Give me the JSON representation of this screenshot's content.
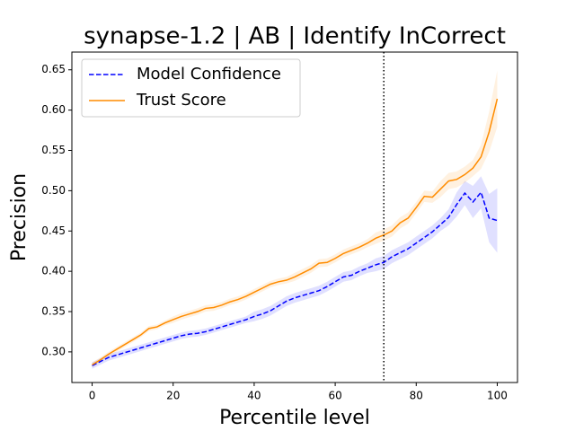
{
  "chart_data": {
    "type": "line",
    "title": "synapse-1.2 | AB | Identify InCorrect",
    "xlabel": "Percentile level",
    "ylabel": "Precision",
    "x": [
      0,
      2,
      4,
      6,
      8,
      10,
      12,
      14,
      16,
      18,
      20,
      22,
      24,
      26,
      28,
      30,
      32,
      34,
      36,
      38,
      40,
      42,
      44,
      46,
      48,
      50,
      52,
      54,
      56,
      58,
      60,
      62,
      64,
      66,
      68,
      70,
      72,
      74,
      76,
      78,
      80,
      82,
      84,
      86,
      88,
      90,
      92,
      94,
      96,
      98,
      100
    ],
    "series": [
      {
        "name": "Model Confidence",
        "color": "#0000ff",
        "dash": true,
        "values": [
          0.283,
          0.288,
          0.293,
          0.296,
          0.299,
          0.302,
          0.305,
          0.308,
          0.311,
          0.314,
          0.317,
          0.32,
          0.322,
          0.323,
          0.325,
          0.328,
          0.331,
          0.334,
          0.337,
          0.34,
          0.344,
          0.347,
          0.351,
          0.357,
          0.363,
          0.367,
          0.37,
          0.373,
          0.376,
          0.381,
          0.387,
          0.393,
          0.395,
          0.4,
          0.404,
          0.408,
          0.411,
          0.418,
          0.423,
          0.428,
          0.435,
          0.442,
          0.449,
          0.458,
          0.467,
          0.483,
          0.497,
          0.486,
          0.498,
          0.466,
          0.463
        ],
        "errors": [
          0.004,
          0.004,
          0.004,
          0.004,
          0.004,
          0.004,
          0.004,
          0.004,
          0.004,
          0.004,
          0.004,
          0.004,
          0.004,
          0.004,
          0.004,
          0.004,
          0.004,
          0.004,
          0.004,
          0.004,
          0.006,
          0.006,
          0.006,
          0.006,
          0.006,
          0.006,
          0.006,
          0.006,
          0.006,
          0.006,
          0.006,
          0.006,
          0.006,
          0.006,
          0.006,
          0.008,
          0.008,
          0.008,
          0.008,
          0.008,
          0.008,
          0.008,
          0.008,
          0.008,
          0.01,
          0.015,
          0.015,
          0.02,
          0.02,
          0.03,
          0.04
        ]
      },
      {
        "name": "Trust Score",
        "color": "#ff8c00",
        "dash": false,
        "values": [
          0.284,
          0.29,
          0.297,
          0.303,
          0.309,
          0.315,
          0.321,
          0.329,
          0.331,
          0.336,
          0.34,
          0.344,
          0.347,
          0.35,
          0.354,
          0.355,
          0.358,
          0.362,
          0.365,
          0.369,
          0.374,
          0.379,
          0.384,
          0.387,
          0.389,
          0.393,
          0.398,
          0.403,
          0.41,
          0.411,
          0.416,
          0.422,
          0.426,
          0.43,
          0.435,
          0.441,
          0.445,
          0.45,
          0.46,
          0.466,
          0.479,
          0.493,
          0.492,
          0.502,
          0.512,
          0.514,
          0.52,
          0.528,
          0.542,
          0.573,
          0.614
        ],
        "errors": [
          0.003,
          0.003,
          0.003,
          0.003,
          0.003,
          0.003,
          0.003,
          0.003,
          0.003,
          0.003,
          0.004,
          0.004,
          0.004,
          0.004,
          0.004,
          0.004,
          0.004,
          0.004,
          0.004,
          0.004,
          0.004,
          0.004,
          0.004,
          0.004,
          0.004,
          0.005,
          0.005,
          0.005,
          0.005,
          0.005,
          0.005,
          0.005,
          0.005,
          0.005,
          0.005,
          0.007,
          0.007,
          0.007,
          0.007,
          0.007,
          0.007,
          0.007,
          0.007,
          0.01,
          0.01,
          0.01,
          0.01,
          0.01,
          0.015,
          0.025,
          0.035
        ]
      }
    ],
    "vline": 72,
    "xlim": [
      -5,
      105
    ],
    "xticks": [
      0,
      20,
      40,
      60,
      80,
      100
    ],
    "ylim": [
      0.262,
      0.672
    ],
    "yticks": [
      {
        "value": 0.3,
        "label": "0.30"
      },
      0.35,
      {
        "value": 0.4,
        "label": "0.40"
      },
      0.45,
      {
        "value": 0.5,
        "label": "0.50"
      },
      0.55,
      {
        "value": 0.6,
        "label": "0.60"
      },
      0.65
    ],
    "legend": "upper left"
  }
}
